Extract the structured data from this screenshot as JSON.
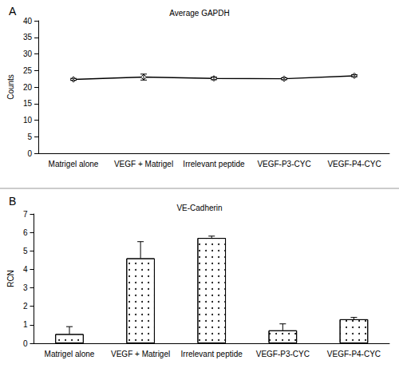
{
  "chart_data": [
    {
      "panel": "A",
      "type": "line",
      "title": "Average GAPDH",
      "y_label": "Counts",
      "categories": [
        "Matrigel alone",
        "VEGF + Matrigel",
        "Irrelevant peptide",
        "VEGF-P3-CYC",
        "VEGF-P4-CYC"
      ],
      "values": [
        22.3,
        23.0,
        22.6,
        22.5,
        23.4
      ],
      "errors": [
        0.3,
        0.9,
        0.4,
        0.3,
        0.3
      ],
      "color": "#000000",
      "marker": "diamond",
      "ylim": [
        0,
        40
      ],
      "yticks": [
        0,
        5,
        10,
        15,
        20,
        25,
        30,
        35,
        40
      ],
      "grid": false
    },
    {
      "panel": "B",
      "type": "bar",
      "title": "VE-Cadherin",
      "y_label": "RCN",
      "categories": [
        "Matrigel alone",
        "VEGF + Matrigel",
        "Irrelevant peptide",
        "VEGF-P3-CYC",
        "VEGF-P4-CYC"
      ],
      "values": [
        0.5,
        4.6,
        5.7,
        0.7,
        1.3
      ],
      "errors": [
        0.4,
        0.9,
        0.1,
        0.35,
        0.1
      ],
      "color": "#000000",
      "ylim": [
        0,
        7
      ],
      "yticks": [
        0,
        1,
        2,
        3,
        4,
        5,
        6,
        7
      ],
      "grid": false
    }
  ]
}
